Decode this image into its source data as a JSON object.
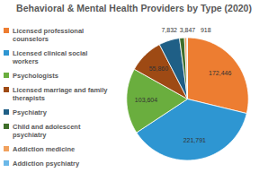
{
  "chart_data": {
    "type": "pie",
    "title": "Behavioral & Mental Health Providers by Type (2020)",
    "categories": [
      "Licensed professional counselors",
      "Licensed clinical social workers",
      "Psychologists",
      "Licensed marriage and family therapists",
      "Psychiatry",
      "Child and adolescent psychiatry",
      "Addiction medicine",
      "Addiction psychiatry"
    ],
    "values": [
      172446,
      221791,
      103604,
      55860,
      33000,
      7832,
      3847,
      918
    ],
    "value_labels": [
      "172,446",
      "221,791",
      "103,604",
      "55,860",
      null,
      "7,832",
      "3,847",
      "918"
    ],
    "colors": [
      "#ED7D31",
      "#2E96D2",
      "#6AAE3E",
      "#9E4A14",
      "#1F5F86",
      "#3F6E2A",
      "#F1A15E",
      "#6BB8E8"
    ],
    "data_labels": true,
    "legend": "left"
  }
}
